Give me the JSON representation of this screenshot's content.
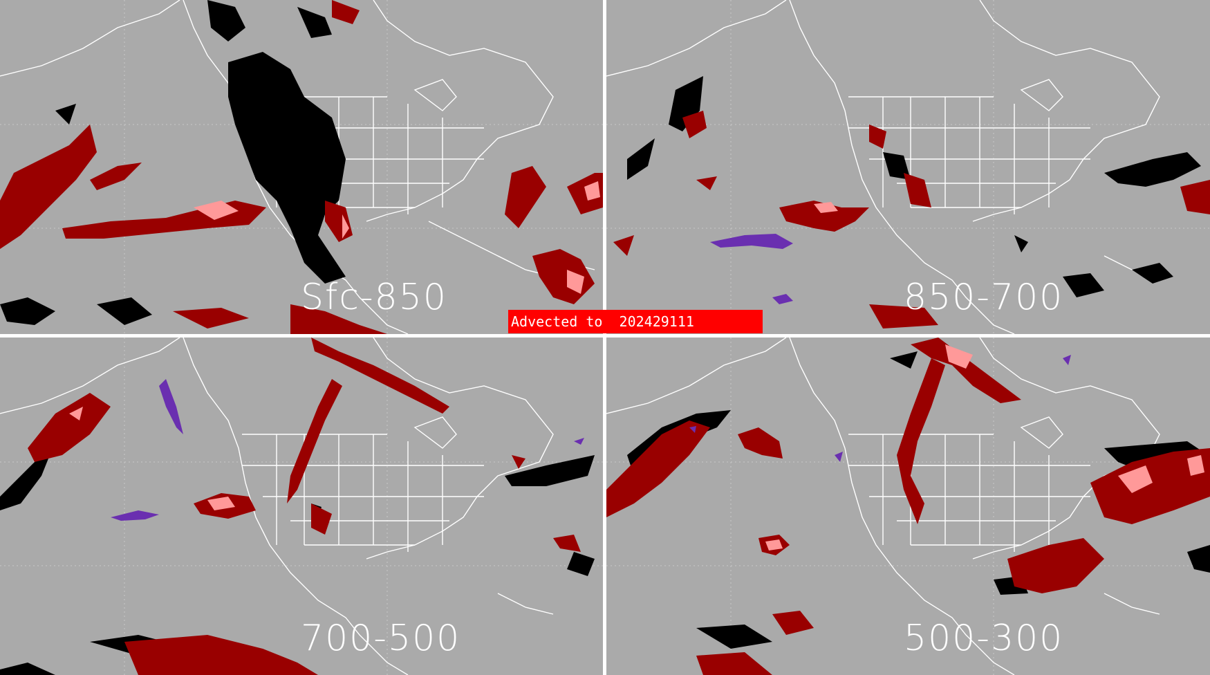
{
  "banner": {
    "text": "Advected to  202429111",
    "color": "#ff0000"
  },
  "panels": [
    {
      "label": "Sfc-850"
    },
    {
      "label": "850-700"
    },
    {
      "label": "700-500"
    },
    {
      "label": "500-300"
    }
  ],
  "colors": {
    "background": "#aaaaaa",
    "divider": "#ffffff",
    "coastline": "#ffffff",
    "anomaly_dark_red": "#990000",
    "anomaly_pink": "#ff9999",
    "anomaly_black": "#000000",
    "anomaly_purple": "#6a2fb0"
  }
}
